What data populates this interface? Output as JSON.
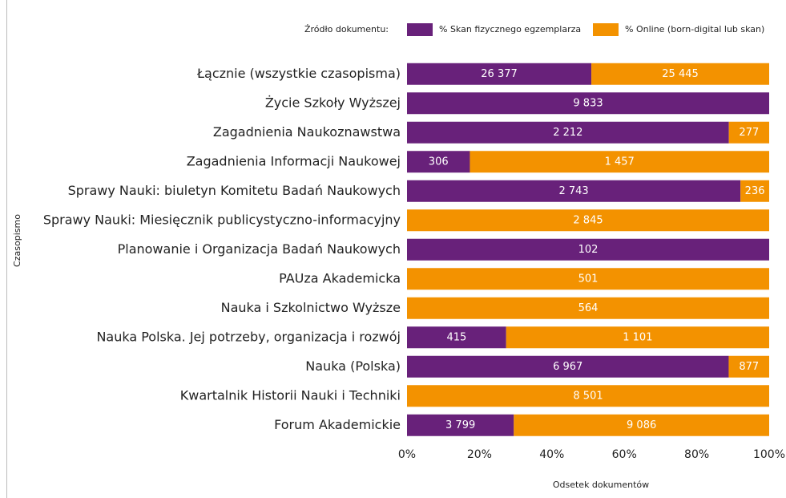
{
  "chart_data": {
    "type": "bar",
    "orientation": "horizontal",
    "stacking": "percent",
    "legend_title": "Źródło dokumentu:",
    "ylabel": "Czasopismo",
    "xlabel": "Odsetek dokumentów",
    "categories": [
      "Łącznie (wszystkie czasopisma)",
      "Życie Szkoły Wyższej",
      "Zagadnienia Naukoznawstwa",
      "Zagadnienia Informacji Naukowej",
      "Sprawy Nauki: biuletyn Komitetu Badań Naukowych",
      "Sprawy Nauki: Miesięcznik publicystyczno-informacyjny",
      "Planowanie i Organizacja Badań Naukowych",
      "PAUza Akademicka",
      "Nauka i Szkolnictwo Wyższe",
      "Nauka Polska. Jej potrzeby, organizacja i rozwój",
      "Nauka (Polska)",
      "Kwartalnik Historii Nauki i Techniki",
      "Forum Akademickie"
    ],
    "series": [
      {
        "name": "% Skan fizycznego egzemplarza",
        "color": "#68217a",
        "values": [
          26377,
          9833,
          2212,
          306,
          2743,
          null,
          102,
          null,
          null,
          415,
          6967,
          null,
          3799
        ],
        "value_labels": [
          "26 377",
          "9 833",
          "2 212",
          "306",
          "2 743",
          null,
          "102",
          null,
          null,
          "415",
          "6 967",
          null,
          "3 799"
        ]
      },
      {
        "name": "% Online (born-digital lub skan)",
        "color": "#f39200",
        "values": [
          25445,
          null,
          277,
          1457,
          236,
          2845,
          null,
          501,
          564,
          1101,
          877,
          8501,
          9086
        ],
        "value_labels": [
          "25 445",
          null,
          "277",
          "1 457",
          "236",
          "2 845",
          null,
          "501",
          "564",
          "1 101",
          "877",
          "8 501",
          "9 086"
        ]
      }
    ],
    "xlim": [
      0,
      100
    ],
    "xticks": [
      {
        "value": 0,
        "label": "0%"
      },
      {
        "value": 20,
        "label": "20%"
      },
      {
        "value": 40,
        "label": "40%"
      },
      {
        "value": 60,
        "label": "60%"
      },
      {
        "value": 80,
        "label": "80%"
      },
      {
        "value": 100,
        "label": "100%"
      }
    ]
  }
}
